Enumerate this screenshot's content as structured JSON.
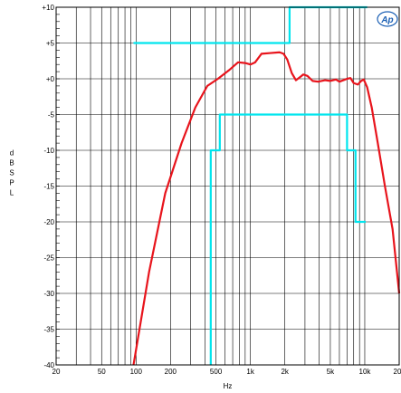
{
  "chart_data": {
    "type": "line",
    "xlabel": "Hz",
    "ylabel": "dBSPL",
    "xscale": "log",
    "xlim": [
      20,
      20000
    ],
    "ylim": [
      -40,
      10
    ],
    "grid": true,
    "logo": "Ap",
    "x_ticks": [
      {
        "value": 20,
        "label": "20"
      },
      {
        "value": 50,
        "label": "50"
      },
      {
        "value": 100,
        "label": "100"
      },
      {
        "value": 200,
        "label": "200"
      },
      {
        "value": 500,
        "label": "500"
      },
      {
        "value": 1000,
        "label": "1k"
      },
      {
        "value": 2000,
        "label": "2k"
      },
      {
        "value": 5000,
        "label": "5k"
      },
      {
        "value": 10000,
        "label": "10k"
      },
      {
        "value": 20000,
        "label": "20k"
      }
    ],
    "y_ticks": [
      {
        "value": 10,
        "label": "+10"
      },
      {
        "value": 5,
        "label": "+5"
      },
      {
        "value": 0,
        "label": "+0"
      },
      {
        "value": -5,
        "label": "-5"
      },
      {
        "value": -10,
        "label": "-10"
      },
      {
        "value": -15,
        "label": "-15"
      },
      {
        "value": -20,
        "label": "-20"
      },
      {
        "value": -25,
        "label": "-25"
      },
      {
        "value": -30,
        "label": "-30"
      },
      {
        "value": -35,
        "label": "-35"
      },
      {
        "value": -40,
        "label": "-40"
      }
    ],
    "series": [
      {
        "color": "#e8141c",
        "points": [
          [
            95,
            -40
          ],
          [
            130,
            -27
          ],
          [
            180,
            -16
          ],
          [
            250,
            -9
          ],
          [
            330,
            -4
          ],
          [
            420,
            -1
          ],
          [
            520,
            0
          ],
          [
            650,
            1.2
          ],
          [
            780,
            2.3
          ],
          [
            900,
            2.2
          ],
          [
            1000,
            2.0
          ],
          [
            1100,
            2.3
          ],
          [
            1250,
            3.5
          ],
          [
            1500,
            3.6
          ],
          [
            1800,
            3.7
          ],
          [
            1950,
            3.5
          ],
          [
            2100,
            2.7
          ],
          [
            2300,
            0.8
          ],
          [
            2500,
            -0.2
          ],
          [
            2750,
            0.3
          ],
          [
            2900,
            0.6
          ],
          [
            3150,
            0.4
          ],
          [
            3500,
            -0.3
          ],
          [
            3900,
            -0.4
          ],
          [
            4500,
            -0.2
          ],
          [
            5000,
            -0.3
          ],
          [
            5600,
            -0.1
          ],
          [
            6000,
            -0.4
          ],
          [
            6500,
            -0.2
          ],
          [
            7000,
            0
          ],
          [
            7500,
            0.1
          ],
          [
            8000,
            -0.6
          ],
          [
            8700,
            -0.8
          ],
          [
            9300,
            -0.3
          ],
          [
            9800,
            -0.1
          ],
          [
            10500,
            -1.2
          ],
          [
            11500,
            -4
          ],
          [
            13000,
            -9
          ],
          [
            15000,
            -15
          ],
          [
            17500,
            -21
          ],
          [
            20000,
            -30
          ]
        ]
      },
      {
        "color": "#00e5ee",
        "points": [
          [
            95,
            5
          ],
          [
            2200,
            5
          ],
          [
            2200,
            10
          ],
          [
            10500,
            10
          ]
        ]
      },
      {
        "color": "#00e5ee",
        "points": [
          [
            450,
            -40
          ],
          [
            450,
            -10
          ],
          [
            540,
            -10
          ],
          [
            540,
            -5
          ],
          [
            7000,
            -5
          ],
          [
            7000,
            -10
          ],
          [
            8300,
            -10
          ],
          [
            8300,
            -20
          ],
          [
            10200,
            -20
          ]
        ]
      }
    ]
  }
}
